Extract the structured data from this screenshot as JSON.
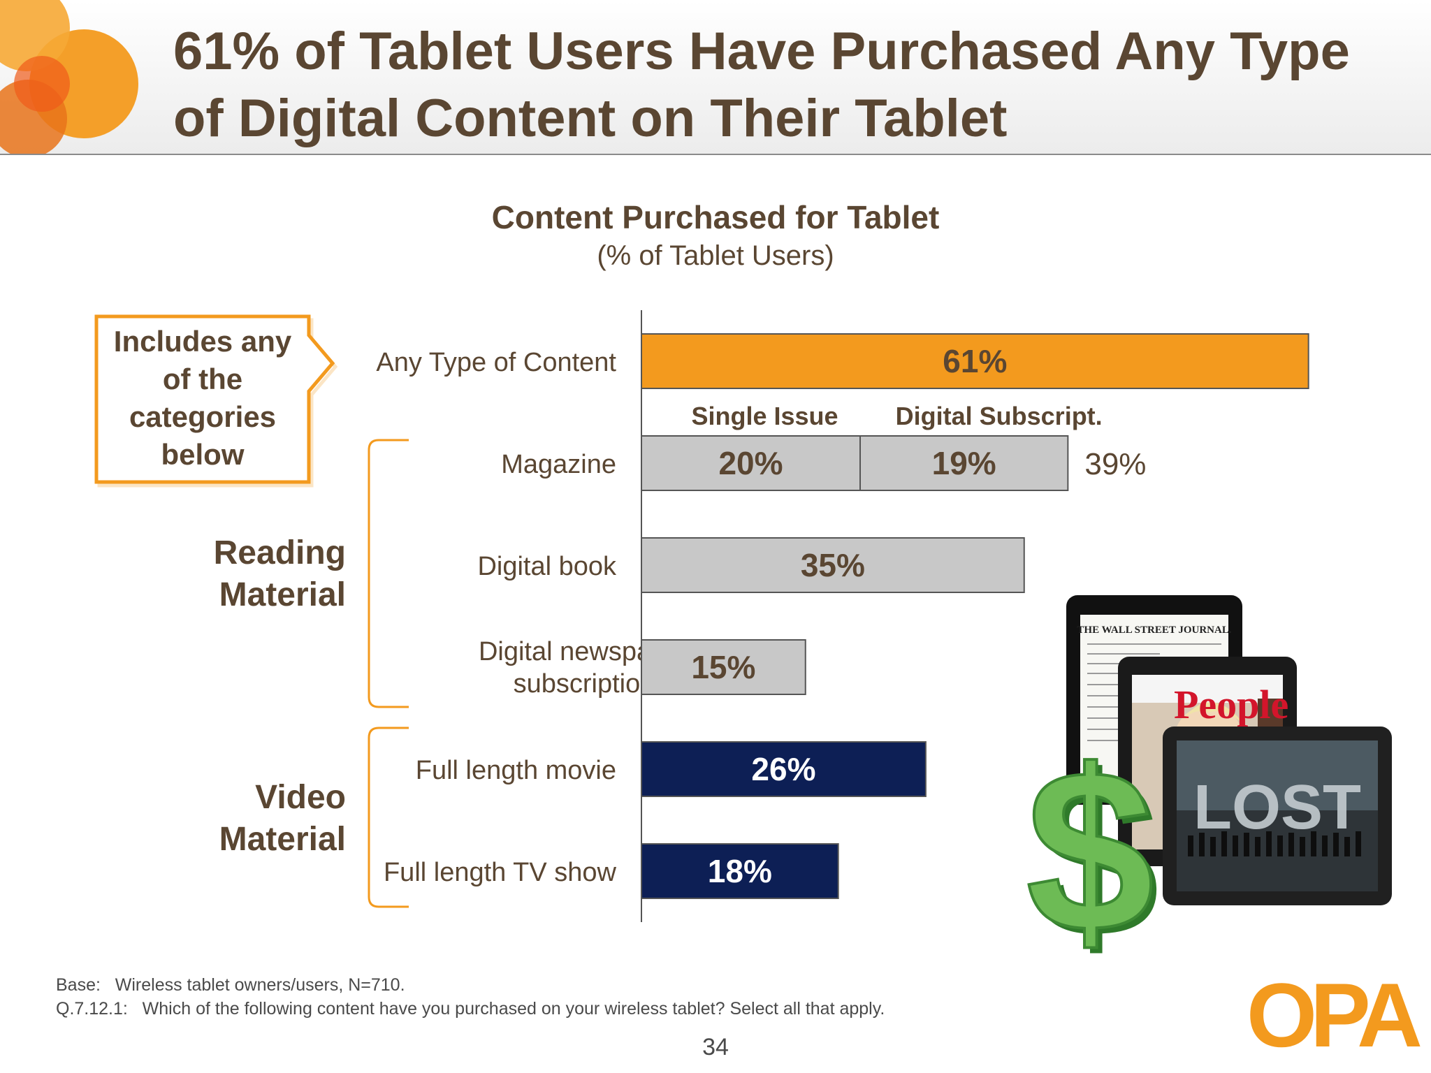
{
  "slide": {
    "title": "61% of Tablet Users Have Purchased Any Type of Digital Content on Their Tablet",
    "page_number": "34"
  },
  "callout": {
    "line1": "Includes any",
    "line2": "of the",
    "line3": "categories",
    "line4": "below"
  },
  "groups": {
    "reading_line1": "Reading",
    "reading_line2": "Material",
    "video_line1": "Video",
    "video_line2": "Material"
  },
  "footnotes": {
    "base": "Base:   Wireless tablet owners/users, N=710.",
    "question": "Q.7.12.1:   Which of the following content have you purchased on your wireless tablet? Select all that apply."
  },
  "logo": {
    "text": "OPA"
  },
  "images": {
    "wsj_masthead": "THE WALL STREET JOURNAL.",
    "people_logo": "People",
    "lost_title": "LOST",
    "dollar_icon": "$"
  },
  "colors": {
    "accent_orange": "#f39a1e",
    "reading_gray": "#c8c8c8",
    "video_navy": "#0d1f55",
    "text_brown": "#5a4632"
  },
  "chart_data": {
    "type": "bar",
    "orientation": "horizontal",
    "title": "Content Purchased for Tablet",
    "subtitle": "(% of Tablet Users)",
    "xlim": [
      0,
      100
    ],
    "stack_labels": [
      "Single Issue",
      "Digital Subscript."
    ],
    "categories": [
      "Any Type of Content",
      "Magazine",
      "Digital book",
      "Digital newspaper subscription",
      "Full length movie",
      "Full length TV show"
    ],
    "category_lines": [
      [
        "Any Type of Content"
      ],
      [
        "Magazine"
      ],
      [
        "Digital book"
      ],
      [
        "Digital newspaper",
        "subscription"
      ],
      [
        "Full length movie"
      ],
      [
        "Full length TV show"
      ]
    ],
    "bars": [
      {
        "segments": [
          61
        ],
        "labels": [
          "61%"
        ],
        "total_label": "",
        "color": "#f39a1e",
        "label_color": "#5a4632"
      },
      {
        "segments": [
          20,
          19
        ],
        "labels": [
          "20%",
          "19%"
        ],
        "total_label": "39%",
        "color": "#c8c8c8",
        "label_color": "#5a4632"
      },
      {
        "segments": [
          35
        ],
        "labels": [
          "35%"
        ],
        "total_label": "",
        "color": "#c8c8c8",
        "label_color": "#5a4632"
      },
      {
        "segments": [
          15
        ],
        "labels": [
          "15%"
        ],
        "total_label": "",
        "color": "#c8c8c8",
        "label_color": "#5a4632"
      },
      {
        "segments": [
          26
        ],
        "labels": [
          "26%"
        ],
        "total_label": "",
        "color": "#0d1f55",
        "label_color": "#ffffff"
      },
      {
        "segments": [
          18
        ],
        "labels": [
          "18%"
        ],
        "total_label": "",
        "color": "#0d1f55",
        "label_color": "#ffffff"
      }
    ]
  }
}
